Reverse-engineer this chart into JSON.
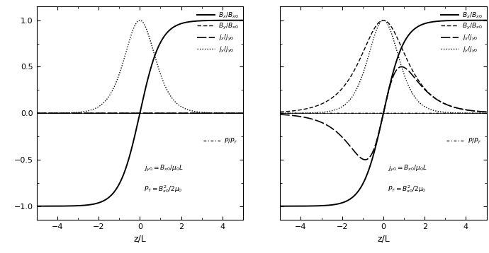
{
  "xlim": [
    -5,
    5
  ],
  "ylim": [
    -1.15,
    1.15
  ],
  "xlabel": "z/L",
  "yticks": [
    -1.0,
    -0.5,
    0.0,
    0.5,
    1.0
  ],
  "xticks": [
    -4,
    -2,
    0,
    2,
    4
  ],
  "figsize": [
    6.9,
    3.58
  ],
  "dpi": 100,
  "left_annot1": "$j_{y0}=B_{x0}/\\mu_0 L$",
  "left_annot2": "$P_T=B^2_{x0}/2\\mu_0$",
  "right_annot1": "$j_{y0}=B_{x0}/\\mu_0 L$",
  "right_annot2": "$P_T=B^2_{x0}/2\\mu_0$",
  "legend_labels": [
    "$B_x/B_{x0}$",
    "$B_y/B_{x0}$",
    "$j_x/j_{y0}$",
    "$j_y/j_{y0}$"
  ],
  "p_label": "$P/P_T$"
}
